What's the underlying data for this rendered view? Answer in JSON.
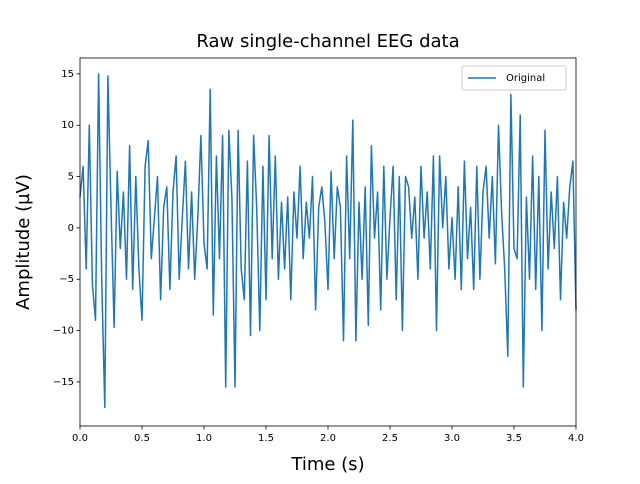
{
  "chart_data": {
    "type": "line",
    "title": "Raw single-channel EEG data",
    "x_label": "Time (s)",
    "y_label": "Amplitude (µV)",
    "x": [
      0,
      0.025,
      0.05,
      0.075,
      0.1,
      0.125,
      0.15,
      0.175,
      0.2,
      0.225,
      0.25,
      0.275,
      0.3,
      0.325,
      0.35,
      0.375,
      0.4,
      0.425,
      0.45,
      0.475,
      0.5,
      0.525,
      0.55,
      0.575,
      0.6,
      0.625,
      0.65,
      0.675,
      0.7,
      0.725,
      0.75,
      0.775,
      0.8,
      0.825,
      0.85,
      0.875,
      0.9,
      0.925,
      0.95,
      0.975,
      1,
      1.025,
      1.05,
      1.075,
      1.1,
      1.125,
      1.15,
      1.175,
      1.2,
      1.225,
      1.25,
      1.275,
      1.3,
      1.325,
      1.35,
      1.375,
      1.4,
      1.425,
      1.45,
      1.475,
      1.5,
      1.525,
      1.55,
      1.575,
      1.6,
      1.625,
      1.65,
      1.675,
      1.7,
      1.725,
      1.75,
      1.775,
      1.8,
      1.825,
      1.85,
      1.875,
      1.9,
      1.925,
      1.95,
      1.975,
      2,
      2.025,
      2.05,
      2.075,
      2.1,
      2.125,
      2.15,
      2.175,
      2.2,
      2.225,
      2.25,
      2.275,
      2.3,
      2.325,
      2.35,
      2.375,
      2.4,
      2.425,
      2.45,
      2.475,
      2.5,
      2.525,
      2.55,
      2.575,
      2.6,
      2.625,
      2.65,
      2.675,
      2.7,
      2.725,
      2.75,
      2.775,
      2.8,
      2.825,
      2.85,
      2.875,
      2.9,
      2.925,
      2.95,
      2.975,
      3,
      3.025,
      3.05,
      3.075,
      3.1,
      3.125,
      3.15,
      3.175,
      3.2,
      3.225,
      3.25,
      3.275,
      3.3,
      3.325,
      3.35,
      3.375,
      3.4,
      3.425,
      3.45,
      3.475,
      3.5,
      3.525,
      3.55,
      3.575,
      3.6,
      3.625,
      3.65,
      3.675,
      3.7,
      3.725,
      3.75,
      3.775,
      3.8,
      3.825,
      3.85,
      3.875,
      3.9,
      3.925,
      3.95,
      3.975,
      4
    ],
    "series": [
      {
        "name": "Original",
        "color": "#1f77b4",
        "values": [
          3,
          6,
          -4,
          10,
          -5.5,
          -9,
          15,
          -5,
          -17.5,
          14.8,
          2,
          -9.7,
          5.5,
          -2,
          3.5,
          -5,
          8,
          -6,
          5,
          -4,
          -9,
          6,
          8.5,
          -3,
          1,
          5,
          -7,
          2,
          4,
          -6,
          3.5,
          7,
          -5,
          1,
          6.5,
          -4,
          3.5,
          -5,
          1,
          9,
          -1.5,
          -4,
          13.5,
          -8.5,
          7,
          -3,
          9,
          -15.5,
          9.5,
          3,
          -15.5,
          9.5,
          -4,
          -7,
          6.5,
          -10.5,
          9,
          2,
          -10,
          6,
          -7,
          9,
          -3,
          7,
          -5,
          2.5,
          -4,
          3,
          -7,
          3.5,
          -1,
          6,
          -3,
          2.5,
          -1,
          5,
          -8,
          2,
          4,
          0.5,
          -6,
          5.5,
          -3,
          4,
          2,
          -11,
          7,
          -3,
          10.5,
          -11,
          2.5,
          -5,
          4,
          -9.5,
          8,
          -1,
          3.5,
          -8,
          6,
          -5,
          1,
          6,
          -7,
          5,
          -10,
          5,
          4,
          -1,
          3,
          -5,
          6,
          -1,
          3.5,
          -4,
          7,
          -10,
          7,
          0,
          5,
          -4,
          1,
          -5,
          4,
          -6,
          6.5,
          -3,
          2,
          -6,
          6,
          -5,
          3.5,
          6,
          -1,
          5,
          -3.5,
          10,
          1.5,
          -4,
          -12.5,
          13,
          -2,
          -3,
          11,
          -15.5,
          3,
          -5,
          7,
          -6,
          5,
          -10,
          9.5,
          -4,
          3.5,
          -2,
          5,
          -7,
          2.5,
          -1,
          4,
          6.5,
          -8
        ]
      }
    ],
    "xlim": [
      0,
      4
    ],
    "ylim": [
      -19.3,
      16.55
    ],
    "xticks": [
      {
        "value": 0,
        "label": "0.0"
      },
      0.5,
      {
        "value": 1,
        "label": "1.0"
      },
      1.5,
      {
        "value": 2,
        "label": "2.0"
      },
      2.5,
      {
        "value": 3,
        "label": "3.0"
      },
      3.5,
      {
        "value": 4,
        "label": "4.0"
      }
    ],
    "yticks": [
      {
        "value": -15,
        "label": "−15"
      },
      {
        "value": -10,
        "label": "−10"
      },
      {
        "value": -5,
        "label": "−5"
      },
      0,
      5,
      10,
      15
    ],
    "legend": "upper right",
    "grid": false
  }
}
